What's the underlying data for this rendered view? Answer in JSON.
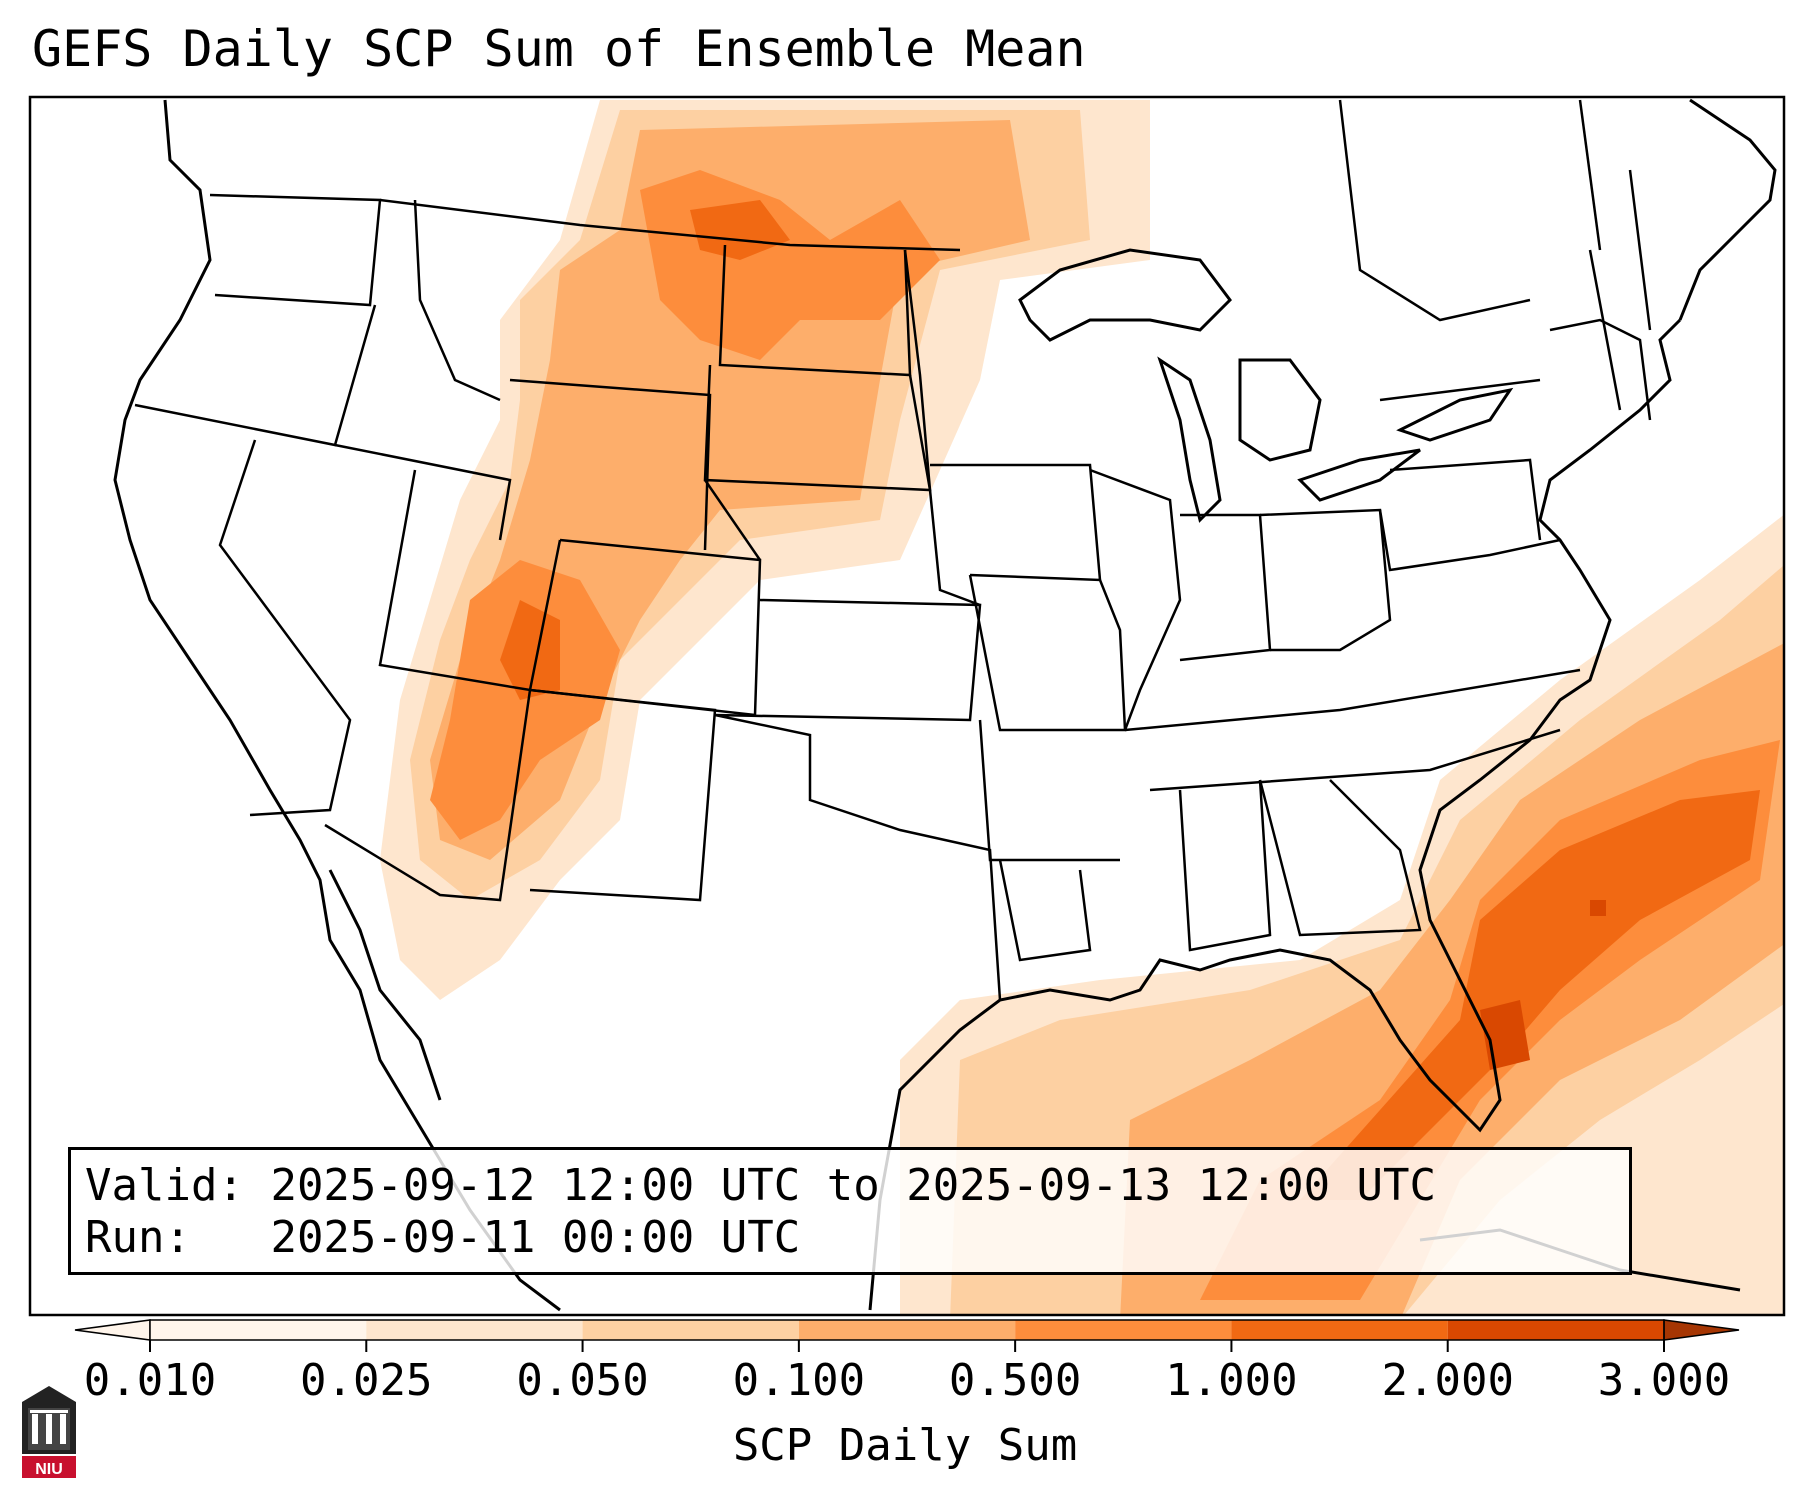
{
  "title": "GEFS Daily SCP Sum of Ensemble Mean",
  "valid_label": "Valid:",
  "valid_value": "2025-09-12 12:00 UTC to 2025-09-13 12:00 UTC",
  "run_label": "Run:",
  "run_value": "2025-09-11 00:00 UTC",
  "colorbar": {
    "title": "SCP Daily Sum",
    "ticks": [
      "0.010",
      "0.025",
      "0.050",
      "0.100",
      "0.500",
      "1.000",
      "2.000",
      "3.000"
    ],
    "colors": [
      "#fff5eb",
      "#fee6ce",
      "#fdd0a2",
      "#fdae6b",
      "#fd8d3c",
      "#f16913",
      "#d94801",
      "#a63603"
    ],
    "extend": "both"
  },
  "logo": {
    "text": "NIU",
    "color": "#c8102e"
  }
}
